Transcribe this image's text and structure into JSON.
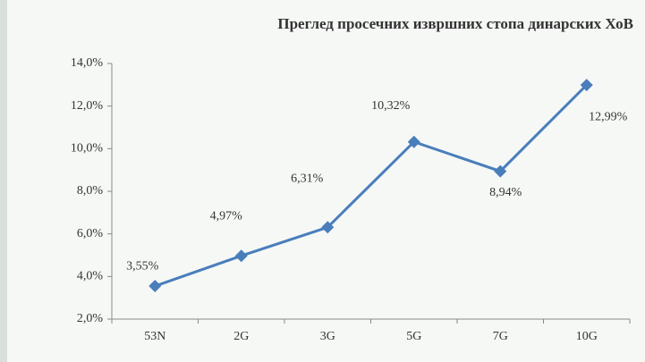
{
  "chart_data": {
    "type": "line",
    "title": "Преглед просечних извршних стопа динарских ХоВ",
    "categories": [
      "53N",
      "2G",
      "3G",
      "5G",
      "7G",
      "10G"
    ],
    "series": [
      {
        "name": "",
        "color": "#4a7ebb",
        "values": [
          3.55,
          4.97,
          6.31,
          10.32,
          8.94,
          12.99
        ],
        "value_labels": [
          "3,55%",
          "4,97%",
          "6,31%",
          "10,32%",
          "8,94%",
          "12,99%"
        ]
      }
    ],
    "ylim": [
      2,
      14
    ],
    "yticks": [
      {
        "value": 2,
        "label": "2,0%"
      },
      {
        "value": 4,
        "label": "4,0%"
      },
      {
        "value": 6,
        "label": "6,0%"
      },
      {
        "value": 8,
        "label": "8,0%"
      },
      {
        "value": 10,
        "label": "10,0%"
      },
      {
        "value": 12,
        "label": "12,0%"
      },
      {
        "value": 14,
        "label": "14,0%"
      }
    ],
    "grid": false
  }
}
